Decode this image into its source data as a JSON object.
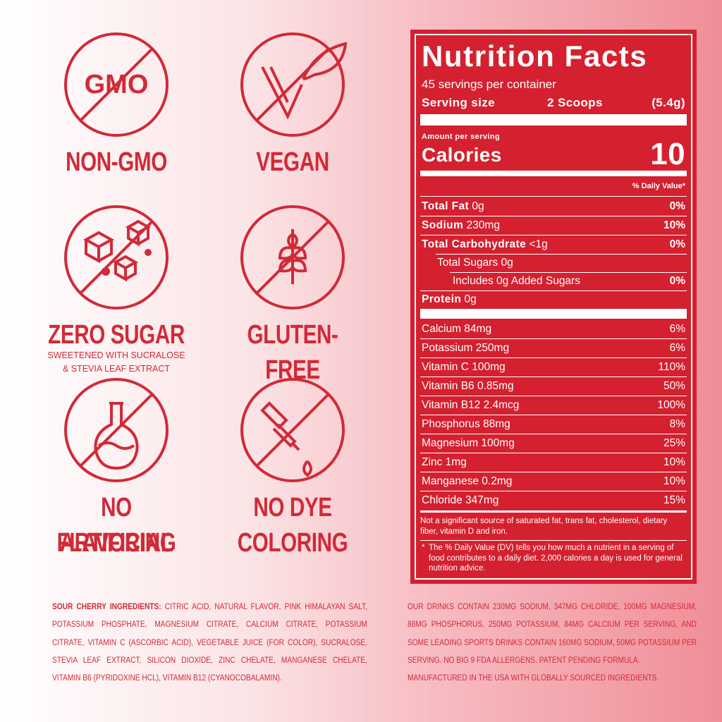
{
  "badges": [
    {
      "icon_text": "GMO",
      "label": [
        "NON-GMO"
      ]
    },
    {
      "label": [
        "VEGAN"
      ]
    },
    {
      "label": [
        "ZERO SUGAR"
      ],
      "note": [
        "SWEETENED WITH SUCRALOSE",
        "& STEVIA LEAF EXTRACT"
      ]
    },
    {
      "label": [
        "GLUTEN-FREE"
      ]
    },
    {
      "label": [
        "NO ARTIFICIAL",
        "FLAVORING"
      ]
    },
    {
      "label": [
        "NO DYE",
        "COLORING"
      ]
    }
  ],
  "nutrition": {
    "title": "Nutrition Facts",
    "servings": "45 servings per container",
    "serving_size_label": "Serving size",
    "serving_size_amount": "2 Scoops",
    "serving_size_weight": "(5.4g)",
    "amount_per_serving": "Amount per serving",
    "calories_label": "Calories",
    "calories": "10",
    "dv_header": "% Daily Value*",
    "total_fat": {
      "name": "Total Fat",
      "amount": "0g",
      "dv": "0%"
    },
    "sodium": {
      "name": "Sodium",
      "amount": "230mg",
      "dv": "10%"
    },
    "total_carbohydrate": {
      "name": "Total Carbohydrate",
      "amount": "<1g",
      "dv": "0%"
    },
    "total_sugars": "Total Sugars 0g",
    "added_sugars": {
      "name": "Includes 0g Added Sugars",
      "dv": "0%"
    },
    "protein": {
      "name": "Protein",
      "amount": "0g"
    },
    "minerals": [
      {
        "name": "Calcium 84mg",
        "dv": "6%"
      },
      {
        "name": "Potassium 250mg",
        "dv": "6%"
      },
      {
        "name": "Vitamin C 100mg",
        "dv": "110%"
      },
      {
        "name": "Vitamin B6 0.85mg",
        "dv": "50%"
      },
      {
        "name": "Vitamin B12 2.4mcg",
        "dv": "100%"
      },
      {
        "name": "Phosphorus 88mg",
        "dv": "8%"
      },
      {
        "name": "Magnesium 100mg",
        "dv": "25%"
      },
      {
        "name": "Zinc 1mg",
        "dv": "10%"
      },
      {
        "name": "Manganese 0.2mg",
        "dv": "10%"
      },
      {
        "name": "Chloride 347mg",
        "dv": "15%"
      }
    ],
    "footnote_1": "Not a significant source of saturated fat, trans fat, cholesterol, dietary fiber, vitamin D and iron.",
    "footnote_2_mark": "*",
    "footnote_2": "The % Daily Value (DV) tells you how much a nutrient in a serving of food contributes to a daily diet. 2,000 calories a day is used for general nutrition advice."
  },
  "ingredients": {
    "label": "SOUR CHERRY INGREDIENTS:",
    "text": "CITRIC ACID, NATURAL FLAVOR, PINK HIMALAYAN SALT, POTASSIUM PHOSPHATE, MAGNESIUM CITRATE, CALCIUM CITRATE, POTASSIUM CITRATE, VITAMIN C (ASCORBIC ACID), VEGETABLE JUICE (FOR COLOR), SUCRALOSE, STEVIA LEAF EXTRACT, SILICON DIOXIDE, ZINC CHELATE, MANGANESE CHELATE, VITAMIN B6 (PYRIDOXINE HCL), VITAMIN B12 (CYANOCOBALAMIN)."
  },
  "claims": [
    "OUR DRINKS CONTAIN 230MG SODIUM, 347MG CHLORIDE, 100MG MAGNESIUM, 88MG PHOSPHORUS, 250MG POTASSIUM, 84MG CALCIUM PER SERVING, AND SOME LEADING SPORTS DRINKS CONTAIN 160MG SODIUM, 50MG POTASSIUM PER SERVING. NO BIG 9 FDA ALLERGENS. PATENT PENDING FORMULA.",
    "MANUFACTURED IN THE USA WITH GLOBALLY SOURCED INGREDIENTS."
  ]
}
